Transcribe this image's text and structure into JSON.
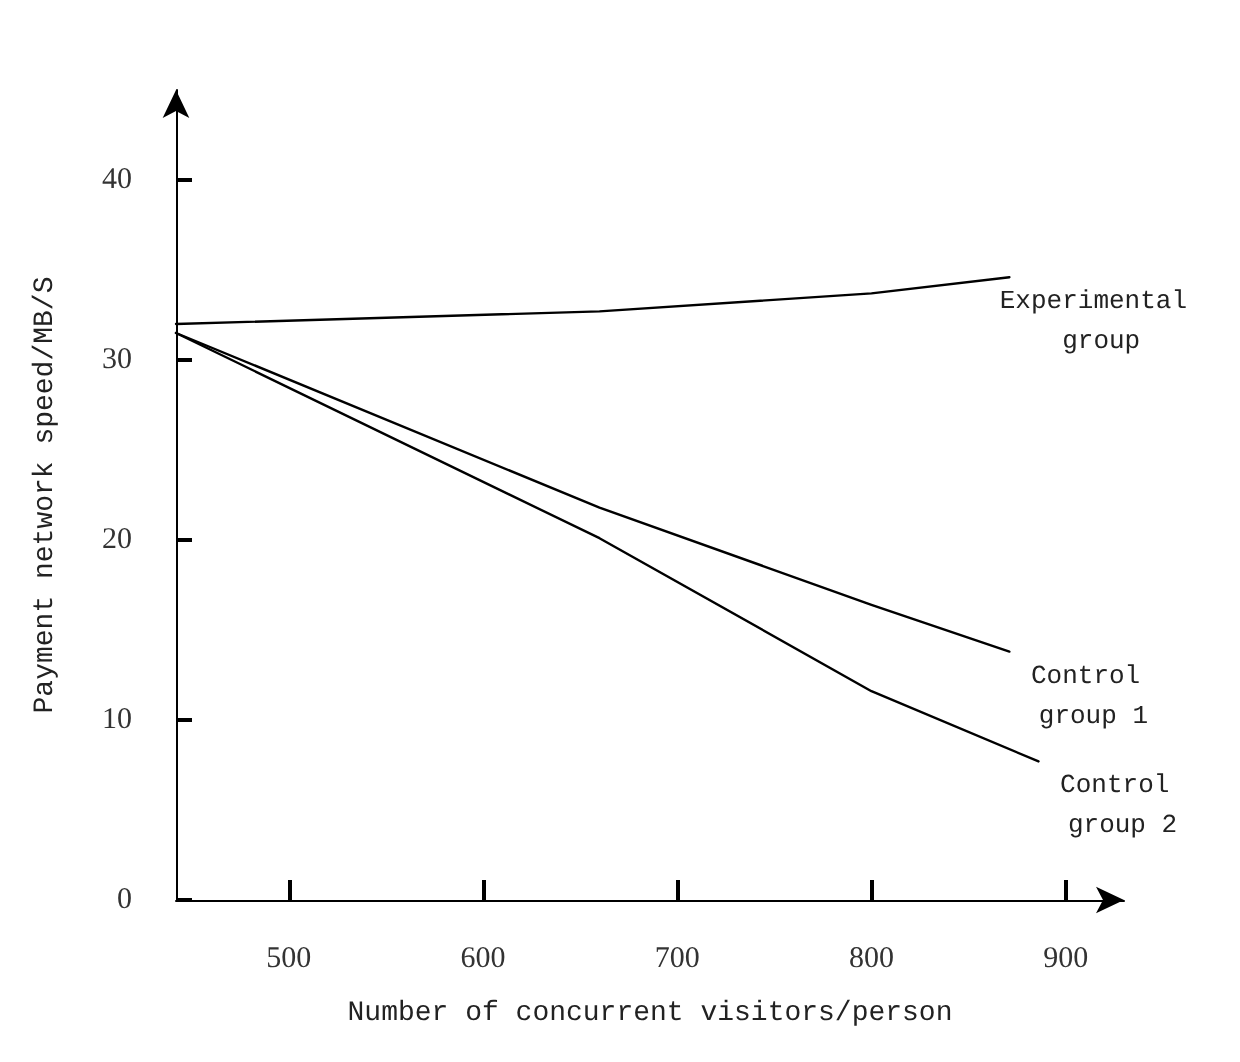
{
  "chart_data": {
    "type": "line",
    "xlabel": "Number of concurrent visitors/person",
    "ylabel": "Payment network speed/MB/S",
    "xlim": [
      442,
      930
    ],
    "xticks": [
      500,
      600,
      700,
      800,
      900
    ],
    "ylim": [
      0,
      45
    ],
    "yticks": [
      0,
      10,
      20,
      30,
      40
    ],
    "grid": false,
    "marker": "none",
    "line_style": "solid",
    "series": [
      {
        "name": "Experimental group",
        "color": "#000000",
        "x": [
          442,
          660,
          800,
          871
        ],
        "values": [
          32.0,
          32.7,
          33.7,
          34.6
        ]
      },
      {
        "name": "Control group 1",
        "color": "#000000",
        "x": [
          442,
          660,
          800,
          871
        ],
        "values": [
          31.5,
          21.8,
          16.4,
          13.8
        ]
      },
      {
        "name": "Control group 2",
        "color": "#000000",
        "x": [
          442,
          660,
          800,
          886
        ],
        "values": [
          31.5,
          20.1,
          11.6,
          7.7
        ]
      }
    ]
  }
}
